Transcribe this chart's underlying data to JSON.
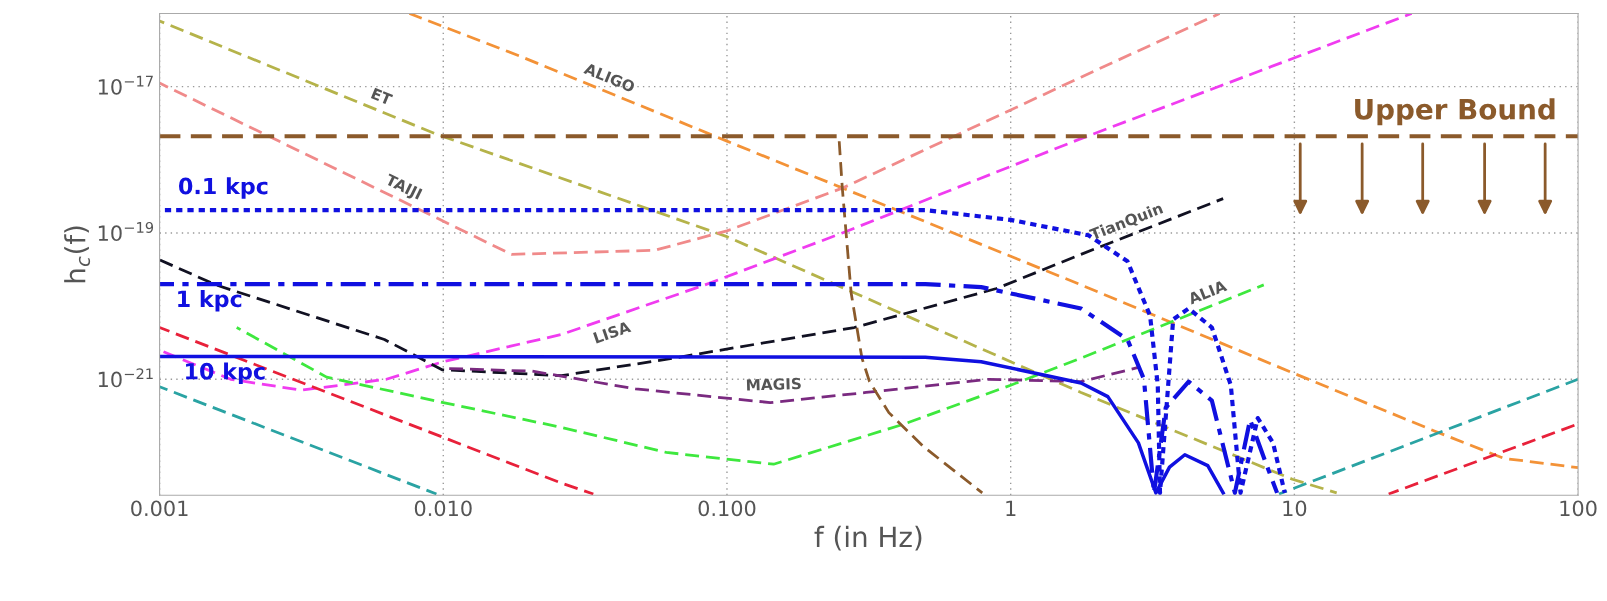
{
  "chart_data": {
    "type": "line",
    "xlabel": "f (in Hz)",
    "ylabel": "h$_{c}$(f)",
    "log": "xy",
    "grid": true,
    "legend": false,
    "xlim": [
      0.001,
      100
    ],
    "ylim": [
      2.6e-23,
      1e-16
    ],
    "xticks": [
      {
        "value": 0.001,
        "label": "0.001"
      },
      {
        "value": 0.01,
        "label": "0.010"
      },
      {
        "value": 0.1,
        "label": "0.100"
      },
      {
        "value": 1,
        "label": "1"
      },
      {
        "value": 10,
        "label": "10"
      },
      {
        "value": 100,
        "label": "100"
      }
    ],
    "yticks": [
      {
        "value": 1e-17,
        "label": "10$^{−17}$"
      },
      {
        "value": 1e-19,
        "label": "10$^{−19}$"
      },
      {
        "value": 1e-21,
        "label": "10$^{−21}$"
      }
    ],
    "series": [
      {
        "name": "ALIGO",
        "line_style": "dashed",
        "color": "#f39237",
        "x": [
          0.0076,
          0.0187,
          0.1,
          0.256,
          1,
          1.77,
          9.84,
          31.3,
          54.7,
          100
        ],
        "values": [
          1e-16,
          2.6e-17,
          1.8e-18,
          4.1e-19,
          4.8e-20,
          1.95e-20,
          1.23e-21,
          1.95e-22,
          8.3e-23,
          6.2e-23
        ]
      },
      {
        "name": "ET",
        "line_style": "dashed",
        "color": "#b5b34a",
        "x": [
          0.001,
          0.0093,
          0.1,
          1,
          1.77,
          9.84,
          14.1
        ],
        "values": [
          7.9e-17,
          2.3e-18,
          8.9e-20,
          1.74e-21,
          6.6e-22,
          4.3e-23,
          2.8e-23
        ]
      },
      {
        "name": "TAIJI",
        "line_style": "dashed",
        "color": "#f08a8a",
        "x": [
          0.001,
          0.0174,
          0.0557,
          0.1,
          0.255,
          1,
          1.77,
          5.45
        ],
        "values": [
          1.12e-17,
          5.1e-20,
          5.8e-20,
          1.07e-19,
          4.1e-19,
          4.8e-18,
          1.35e-17,
          1e-16
        ]
      },
      {
        "name": "LISA",
        "line_style": "dashed",
        "color": "#f03cf0",
        "x": [
          0.001,
          0.00178,
          0.00316,
          0.0063,
          0.01,
          0.0261,
          0.0836,
          0.255,
          1.77,
          25.9
        ],
        "values": [
          2.5e-21,
          1e-21,
          7.1e-22,
          1e-21,
          1.74e-21,
          4.1e-21,
          1.95e-20,
          1e-19,
          1.95e-18,
          1e-16
        ]
      },
      {
        "name": "TianQuin",
        "line_style": "dashed",
        "color": "#111122",
        "x": [
          0.001,
          0.00158,
          0.0062,
          0.0099,
          0.0261,
          0.065,
          0.281,
          0.891,
          1.77,
          5.61
        ],
        "values": [
          4.3e-20,
          1.95e-20,
          3.5e-21,
          1.35e-21,
          1.12e-21,
          1.95e-21,
          5.1e-21,
          1.74e-20,
          5.1e-20,
          2.95e-19
        ]
      },
      {
        "name": "ALIA",
        "line_style": "dashed",
        "color": "#3ee83e",
        "x": [
          0.00187,
          0.00388,
          0.01,
          0.0261,
          0.0611,
          0.146,
          0.422,
          1,
          1.77,
          7.8
        ],
        "values": [
          5.1e-21,
          1.07e-21,
          4.8e-22,
          2.2e-22,
          1e-22,
          6.9e-23,
          2.45e-22,
          8.3e-22,
          1.95e-21,
          1.95e-20
        ]
      },
      {
        "name": "MAGIS",
        "line_style": "dashed",
        "color": "#7a2a80",
        "x": [
          0.01,
          0.0206,
          0.0476,
          0.142,
          0.309,
          0.838,
          1.77,
          2.82
        ],
        "values": [
          1.41e-21,
          1.29e-21,
          7.4e-22,
          4.8e-22,
          6.6e-22,
          1e-21,
          9.3e-22,
          1.45e-21
        ]
      },
      {
        "line_style": "dashed",
        "color": "#e8213a",
        "x": [
          0.001,
          0.0261,
          0.0338,
          1,
          21.5,
          100
        ],
        "values": [
          5.1e-21,
          3.8e-23,
          2.7e-23,
          null,
          2.7e-23,
          2.45e-22
        ]
      },
      {
        "line_style": "dashed",
        "color": "#2aa3a3",
        "x": [
          0.001,
          0.00946,
          1,
          8.83,
          100
        ],
        "values": [
          7.9e-22,
          2.7e-23,
          null,
          2.7e-23,
          1e-21
        ]
      },
      {
        "line_style": "dashed",
        "color": "#8b5a2b",
        "x": [
          0.248,
          0.255,
          0.274,
          0.299,
          0.318,
          0.372,
          0.493,
          0.794
        ],
        "values": [
          2.1e-18,
          4.1e-19,
          1.51e-20,
          1.95e-21,
          9.3e-22,
          3.5e-22,
          1.2e-22,
          2.8e-23
        ]
      },
      {
        "name": "0.1 kpc",
        "line_style": "dotted",
        "color": "#1010e0",
        "x": [
          0.001,
          0.5,
          1,
          1.88,
          2.58,
          3.1,
          3.3,
          3.36,
          3.74,
          4.24,
          5.12,
          5.97,
          6.46,
          7.43,
          8.41,
          9.25
        ],
        "values": [
          2.05e-19,
          2.05e-19,
          1.51e-19,
          9.3e-20,
          4.1e-20,
          7.4e-21,
          8.3e-22,
          2.8e-23,
          6.6e-21,
          9.3e-21,
          5.1e-21,
          8.3e-22,
          2.8e-23,
          2.95e-22,
          1.35e-22,
          2.8e-23
        ]
      },
      {
        "name": "1 kpc",
        "line_style": "dashdot",
        "color": "#1010e0",
        "x": [
          0.001,
          0.5,
          0.787,
          1.77,
          2.58,
          2.95,
          3.2,
          3.52,
          4.24,
          5.12,
          6.17,
          6.98,
          7.91,
          8.69
        ],
        "values": [
          2e-20,
          2e-20,
          1.82e-20,
          9.3e-21,
          3.5e-21,
          1e-21,
          2.8e-23,
          4.1e-22,
          9.3e-22,
          5.1e-22,
          2.8e-23,
          2.8e-22,
          7.4e-23,
          2.8e-23
        ]
      },
      {
        "name": "10 kpc",
        "line_style": "solid",
        "color": "#1010e0",
        "x": [
          0.001,
          0.5,
          0.787,
          1.77,
          2.2,
          2.82,
          3.25,
          3.63,
          4.11,
          4.95,
          5.61
        ],
        "values": [
          2.05e-21,
          2e-21,
          1.74e-21,
          8.9e-22,
          5.8e-22,
          1.35e-22,
          2.8e-23,
          6.3e-23,
          9.3e-23,
          6.6e-23,
          2.8e-23
        ]
      }
    ],
    "ref_lines": [
      {
        "axis": "y",
        "value": 2.1e-18,
        "label": "Upper Bound",
        "color": "#8b5a2b",
        "line_style": "dashed"
      }
    ]
  }
}
